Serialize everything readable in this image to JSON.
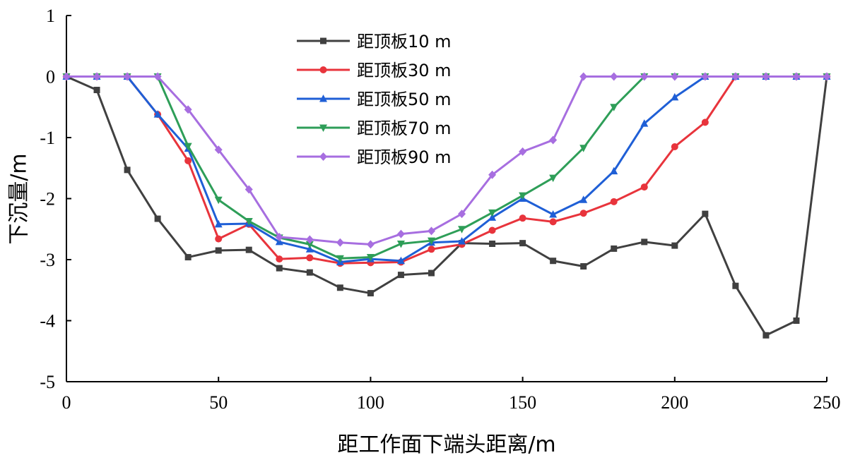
{
  "chart_data": {
    "type": "line",
    "xlabel": "距工作面下端头距离/m",
    "ylabel": "下沉量/m",
    "xlim": [
      0,
      250
    ],
    "ylim": [
      -5,
      1
    ],
    "xticks": [
      0,
      50,
      100,
      150,
      200,
      250
    ],
    "yticks": [
      1,
      0,
      -1,
      -2,
      -3,
      -4,
      -5
    ],
    "grid": false,
    "legend_position": "top-center",
    "series": [
      {
        "name": "距顶板10 m",
        "color": "#404040",
        "marker": "square",
        "x": [
          0,
          10,
          20,
          30,
          40,
          50,
          60,
          70,
          80,
          90,
          100,
          110,
          120,
          130,
          140,
          150,
          160,
          170,
          180,
          190,
          200,
          210,
          220,
          230,
          240,
          250
        ],
        "y": [
          0,
          -0.22,
          -1.53,
          -2.33,
          -2.96,
          -2.85,
          -2.84,
          -3.14,
          -3.21,
          -3.46,
          -3.55,
          -3.25,
          -3.22,
          -2.73,
          -2.74,
          -2.73,
          -3.02,
          -3.11,
          -2.82,
          -2.71,
          -2.77,
          -2.25,
          -3.43,
          -4.24,
          -4.0,
          0
        ]
      },
      {
        "name": "距顶板30 m",
        "color": "#e8343c",
        "marker": "circle",
        "x": [
          0,
          10,
          20,
          30,
          40,
          50,
          60,
          70,
          80,
          90,
          100,
          110,
          120,
          130,
          140,
          150,
          160,
          170,
          180,
          190,
          200,
          210,
          220,
          230,
          240,
          250
        ],
        "y": [
          0,
          0,
          0,
          -0.62,
          -1.38,
          -2.66,
          -2.42,
          -2.99,
          -2.97,
          -3.06,
          -3.05,
          -3.04,
          -2.83,
          -2.75,
          -2.52,
          -2.32,
          -2.38,
          -2.24,
          -2.05,
          -1.81,
          -1.15,
          -0.75,
          0,
          0,
          0,
          0
        ]
      },
      {
        "name": "距顶板50 m",
        "color": "#1f5fd6",
        "marker": "triangle-up",
        "x": [
          0,
          10,
          20,
          30,
          40,
          50,
          60,
          70,
          80,
          90,
          100,
          110,
          120,
          130,
          140,
          150,
          160,
          170,
          180,
          190,
          200,
          210,
          220,
          230,
          240,
          250
        ],
        "y": [
          0,
          0,
          0,
          -0.62,
          -1.18,
          -2.42,
          -2.41,
          -2.71,
          -2.83,
          -3.04,
          -2.99,
          -3.02,
          -2.72,
          -2.7,
          -2.31,
          -2.0,
          -2.26,
          -2.02,
          -1.55,
          -0.77,
          -0.34,
          0,
          0,
          0,
          0,
          0
        ]
      },
      {
        "name": "距顶板70 m",
        "color": "#2e9e58",
        "marker": "triangle-down",
        "x": [
          0,
          10,
          20,
          30,
          40,
          50,
          60,
          70,
          80,
          90,
          100,
          110,
          120,
          130,
          140,
          150,
          160,
          170,
          180,
          190,
          200,
          210,
          220,
          230,
          240,
          250
        ],
        "y": [
          0,
          0,
          0,
          0,
          -1.14,
          -2.02,
          -2.37,
          -2.64,
          -2.75,
          -2.98,
          -2.96,
          -2.74,
          -2.69,
          -2.5,
          -2.23,
          -1.95,
          -1.66,
          -1.17,
          -0.5,
          0,
          0,
          0,
          0,
          0,
          0,
          0
        ]
      },
      {
        "name": "距顶板90 m",
        "color": "#a76ee0",
        "marker": "diamond",
        "x": [
          0,
          10,
          20,
          30,
          40,
          50,
          60,
          70,
          80,
          90,
          100,
          110,
          120,
          130,
          140,
          150,
          160,
          170,
          180,
          190,
          200,
          210,
          220,
          230,
          240,
          250
        ],
        "y": [
          0,
          0,
          0,
          0,
          -0.54,
          -1.2,
          -1.85,
          -2.63,
          -2.67,
          -2.72,
          -2.75,
          -2.58,
          -2.53,
          -2.25,
          -1.61,
          -1.23,
          -1.04,
          0,
          0,
          0,
          0,
          0,
          0,
          0,
          0,
          0
        ]
      }
    ]
  }
}
